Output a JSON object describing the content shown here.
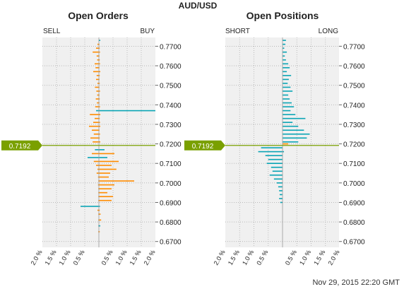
{
  "chart_data": {
    "type": "bar",
    "pair": "AUD/USD",
    "current_price": 0.7192,
    "current_price_label": "0.7192",
    "timestamp": "Nov 29, 2015 22:20 GMT",
    "price_ticks": [
      "0.7700",
      "0.7600",
      "0.7500",
      "0.7400",
      "0.7300",
      "0.7200",
      "0.7100",
      "0.7000",
      "0.6900",
      "0.6800",
      "0.6700"
    ],
    "percent_ticks_left": [
      "2.0 %",
      "1.5 %",
      "1.0 %",
      "0.5 %"
    ],
    "percent_ticks_right": [
      "0.5 %",
      "1.0 %",
      "1.5 %",
      "2.0 %"
    ],
    "colors": {
      "orange": "#ff8c00",
      "teal": "#0aa5b5",
      "price_line": "#7aa000",
      "grid_bg": "#f0f0f0"
    },
    "panels": [
      {
        "title": "Open Orders",
        "left_label": "SELL",
        "right_label": "BUY",
        "ylim": [
          0.667,
          0.7745
        ],
        "xlim": [
          -2.0,
          2.0
        ],
        "bars": [
          {
            "price": 0.773,
            "left": 0.0,
            "right": 0.05,
            "color": "teal"
          },
          {
            "price": 0.771,
            "left": 0.05,
            "right": 0.02,
            "color": "orange"
          },
          {
            "price": 0.769,
            "left": 0.1,
            "right": 0.03,
            "color": "orange"
          },
          {
            "price": 0.767,
            "left": 0.22,
            "right": 0.04,
            "color": "orange"
          },
          {
            "price": 0.765,
            "left": 0.08,
            "right": 0.02,
            "color": "orange"
          },
          {
            "price": 0.763,
            "left": 0.06,
            "right": 0.03,
            "color": "orange"
          },
          {
            "price": 0.761,
            "left": 0.15,
            "right": 0.04,
            "color": "orange"
          },
          {
            "price": 0.759,
            "left": 0.12,
            "right": 0.02,
            "color": "orange"
          },
          {
            "price": 0.757,
            "left": 0.2,
            "right": 0.05,
            "color": "orange"
          },
          {
            "price": 0.755,
            "left": 0.08,
            "right": 0.03,
            "color": "orange"
          },
          {
            "price": 0.753,
            "left": 0.1,
            "right": 0.02,
            "color": "orange"
          },
          {
            "price": 0.751,
            "left": 0.05,
            "right": 0.03,
            "color": "orange"
          },
          {
            "price": 0.749,
            "left": 0.14,
            "right": 0.02,
            "color": "orange"
          },
          {
            "price": 0.747,
            "left": 0.09,
            "right": 0.04,
            "color": "orange"
          },
          {
            "price": 0.745,
            "left": 0.06,
            "right": 0.02,
            "color": "orange"
          },
          {
            "price": 0.743,
            "left": 0.11,
            "right": 0.03,
            "color": "orange"
          },
          {
            "price": 0.741,
            "left": 0.07,
            "right": 0.02,
            "color": "orange"
          },
          {
            "price": 0.739,
            "left": 0.13,
            "right": 0.04,
            "color": "orange"
          },
          {
            "price": 0.737,
            "left": 0.1,
            "right": 2.0,
            "color": "teal"
          },
          {
            "price": 0.735,
            "left": 0.32,
            "right": 0.05,
            "color": "orange"
          },
          {
            "price": 0.733,
            "left": 0.15,
            "right": 0.03,
            "color": "orange"
          },
          {
            "price": 0.731,
            "left": 0.2,
            "right": 0.04,
            "color": "orange"
          },
          {
            "price": 0.729,
            "left": 0.35,
            "right": 0.05,
            "color": "orange"
          },
          {
            "price": 0.727,
            "left": 0.25,
            "right": 0.02,
            "color": "orange"
          },
          {
            "price": 0.725,
            "left": 0.18,
            "right": 0.04,
            "color": "orange"
          },
          {
            "price": 0.723,
            "left": 0.3,
            "right": 0.03,
            "color": "orange"
          },
          {
            "price": 0.721,
            "left": 0.22,
            "right": 0.05,
            "color": "orange"
          },
          {
            "price": 0.717,
            "left": 0.14,
            "right": 0.2,
            "color": "teal"
          },
          {
            "price": 0.715,
            "left": 0.25,
            "right": 0.55,
            "color": "orange"
          },
          {
            "price": 0.713,
            "left": 0.4,
            "right": 0.3,
            "color": "teal"
          },
          {
            "price": 0.711,
            "left": 0.18,
            "right": 0.7,
            "color": "orange"
          },
          {
            "price": 0.709,
            "left": 0.1,
            "right": 0.45,
            "color": "orange"
          },
          {
            "price": 0.707,
            "left": 0.05,
            "right": 0.62,
            "color": "orange"
          },
          {
            "price": 0.705,
            "left": 0.08,
            "right": 0.4,
            "color": "orange"
          },
          {
            "price": 0.703,
            "left": 0.03,
            "right": 0.35,
            "color": "orange"
          },
          {
            "price": 0.701,
            "left": 0.02,
            "right": 1.25,
            "color": "orange"
          },
          {
            "price": 0.699,
            "left": 0.03,
            "right": 0.55,
            "color": "orange"
          },
          {
            "price": 0.697,
            "left": 0.02,
            "right": 0.45,
            "color": "orange"
          },
          {
            "price": 0.695,
            "left": 0.02,
            "right": 0.3,
            "color": "orange"
          },
          {
            "price": 0.693,
            "left": 0.02,
            "right": 0.5,
            "color": "orange"
          },
          {
            "price": 0.691,
            "left": 0.02,
            "right": 0.45,
            "color": "orange"
          },
          {
            "price": 0.688,
            "left": 0.65,
            "right": 0.04,
            "color": "teal"
          },
          {
            "price": 0.686,
            "left": 0.05,
            "right": 0.03,
            "color": "orange"
          },
          {
            "price": 0.684,
            "left": 0.02,
            "right": 0.06,
            "color": "orange"
          },
          {
            "price": 0.681,
            "left": 0.02,
            "right": 0.08,
            "color": "orange"
          },
          {
            "price": 0.678,
            "left": 0.02,
            "right": 0.05,
            "color": "teal"
          },
          {
            "price": 0.675,
            "left": 0.02,
            "right": 0.03,
            "color": "orange"
          }
        ]
      },
      {
        "title": "Open Positions",
        "left_label": "SHORT",
        "right_label": "LONG",
        "ylim": [
          0.667,
          0.7745
        ],
        "xlim": [
          -2.0,
          2.0
        ],
        "bars": [
          {
            "price": 0.773,
            "left": 0.0,
            "right": 0.12,
            "color": "teal"
          },
          {
            "price": 0.771,
            "left": 0.0,
            "right": 0.1,
            "color": "teal"
          },
          {
            "price": 0.769,
            "left": 0.0,
            "right": 0.06,
            "color": "teal"
          },
          {
            "price": 0.767,
            "left": 0.0,
            "right": 0.15,
            "color": "teal"
          },
          {
            "price": 0.765,
            "left": 0.0,
            "right": 0.08,
            "color": "teal"
          },
          {
            "price": 0.763,
            "left": 0.0,
            "right": 0.12,
            "color": "teal"
          },
          {
            "price": 0.761,
            "left": 0.0,
            "right": 0.2,
            "color": "teal"
          },
          {
            "price": 0.759,
            "left": 0.0,
            "right": 0.25,
            "color": "teal"
          },
          {
            "price": 0.757,
            "left": 0.0,
            "right": 0.15,
            "color": "teal"
          },
          {
            "price": 0.755,
            "left": 0.0,
            "right": 0.3,
            "color": "teal"
          },
          {
            "price": 0.753,
            "left": 0.0,
            "right": 0.22,
            "color": "teal"
          },
          {
            "price": 0.751,
            "left": 0.0,
            "right": 0.18,
            "color": "teal"
          },
          {
            "price": 0.749,
            "left": 0.0,
            "right": 0.28,
            "color": "teal"
          },
          {
            "price": 0.747,
            "left": 0.0,
            "right": 0.35,
            "color": "teal"
          },
          {
            "price": 0.745,
            "left": 0.0,
            "right": 0.2,
            "color": "teal"
          },
          {
            "price": 0.743,
            "left": 0.0,
            "right": 0.25,
            "color": "teal"
          },
          {
            "price": 0.741,
            "left": 0.0,
            "right": 0.32,
            "color": "teal"
          },
          {
            "price": 0.739,
            "left": 0.0,
            "right": 0.4,
            "color": "teal"
          },
          {
            "price": 0.737,
            "left": 0.0,
            "right": 0.28,
            "color": "teal"
          },
          {
            "price": 0.735,
            "left": 0.0,
            "right": 0.45,
            "color": "teal"
          },
          {
            "price": 0.733,
            "left": 0.0,
            "right": 0.8,
            "color": "teal"
          },
          {
            "price": 0.731,
            "left": 0.0,
            "right": 0.35,
            "color": "teal"
          },
          {
            "price": 0.729,
            "left": 0.0,
            "right": 0.55,
            "color": "teal"
          },
          {
            "price": 0.727,
            "left": 0.0,
            "right": 0.75,
            "color": "teal"
          },
          {
            "price": 0.725,
            "left": 0.0,
            "right": 0.95,
            "color": "teal"
          },
          {
            "price": 0.723,
            "left": 0.0,
            "right": 0.85,
            "color": "teal"
          },
          {
            "price": 0.721,
            "left": 0.0,
            "right": 0.55,
            "color": "teal"
          },
          {
            "price": 0.72,
            "left": 0.0,
            "right": 0.2,
            "color": "orange"
          },
          {
            "price": 0.718,
            "left": 0.75,
            "right": 0.0,
            "color": "teal"
          },
          {
            "price": 0.716,
            "left": 0.85,
            "right": 0.05,
            "color": "teal"
          },
          {
            "price": 0.714,
            "left": 0.6,
            "right": 0.0,
            "color": "teal"
          },
          {
            "price": 0.712,
            "left": 0.5,
            "right": 0.0,
            "color": "teal"
          },
          {
            "price": 0.71,
            "left": 0.55,
            "right": 0.0,
            "color": "teal"
          },
          {
            "price": 0.708,
            "left": 0.4,
            "right": 0.0,
            "color": "teal"
          },
          {
            "price": 0.706,
            "left": 0.35,
            "right": 0.0,
            "color": "teal"
          },
          {
            "price": 0.704,
            "left": 0.45,
            "right": 0.0,
            "color": "teal"
          },
          {
            "price": 0.702,
            "left": 0.3,
            "right": 0.0,
            "color": "teal"
          },
          {
            "price": 0.7,
            "left": 0.2,
            "right": 0.0,
            "color": "teal"
          },
          {
            "price": 0.698,
            "left": 0.15,
            "right": 0.0,
            "color": "teal"
          },
          {
            "price": 0.696,
            "left": 0.12,
            "right": 0.0,
            "color": "teal"
          },
          {
            "price": 0.694,
            "left": 0.1,
            "right": 0.0,
            "color": "teal"
          },
          {
            "price": 0.692,
            "left": 0.12,
            "right": 0.0,
            "color": "teal"
          },
          {
            "price": 0.69,
            "left": 0.08,
            "right": 0.0,
            "color": "teal"
          }
        ]
      }
    ]
  }
}
